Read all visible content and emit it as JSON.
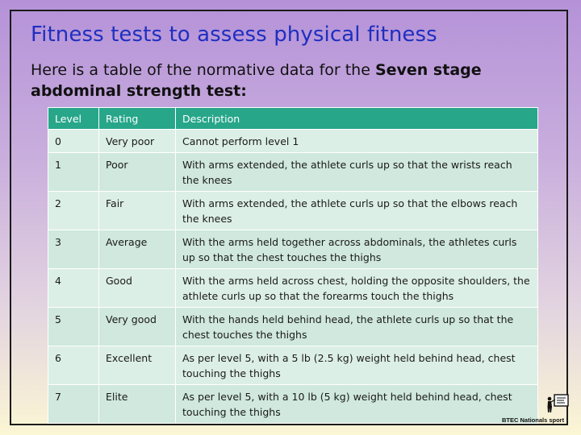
{
  "slide": {
    "title": "Fitness tests to assess physical fitness",
    "intro_text": "Here is a table of the normative data for the ",
    "intro_bold": "Seven stage abdominal strength test:"
  },
  "table": {
    "headers": [
      "Level",
      "Rating",
      "Description"
    ],
    "rows": [
      {
        "level": "0",
        "rating": "Very poor",
        "description": "Cannot perform level 1"
      },
      {
        "level": "1",
        "rating": "Poor",
        "description": "With arms extended, the athlete curls up so that the wrists reach the knees"
      },
      {
        "level": "2",
        "rating": "Fair",
        "description": "With arms extended, the athlete curls up so that the elbows reach the knees"
      },
      {
        "level": "3",
        "rating": "Average",
        "description": "With the arms held together across abdominals, the athletes curls up so that the chest touches the thighs"
      },
      {
        "level": "4",
        "rating": "Good",
        "description": "With the arms held across chest, holding the opposite shoulders, the athlete curls up so that the forearms touch the thighs"
      },
      {
        "level": "5",
        "rating": "Very good",
        "description": "With the hands held behind head, the athlete curls up so that the chest touches the thighs"
      },
      {
        "level": "6",
        "rating": "Excellent",
        "description": "As per level 5, with a 5 lb (2.5 kg) weight held behind head, chest touching the thighs"
      },
      {
        "level": "7",
        "rating": "Elite",
        "description": "As per level 5, with a 10 lb (5 kg) weight held behind head, chest touching the thighs"
      }
    ]
  },
  "logo": {
    "text": "BTEC Nationals sport",
    "icon": "presenter-board-icon"
  },
  "colors": {
    "title": "#1f2fc0",
    "table_header": "#27a68a",
    "table_row": "#dcefe6",
    "table_row_alt": "#d0e8dd"
  }
}
